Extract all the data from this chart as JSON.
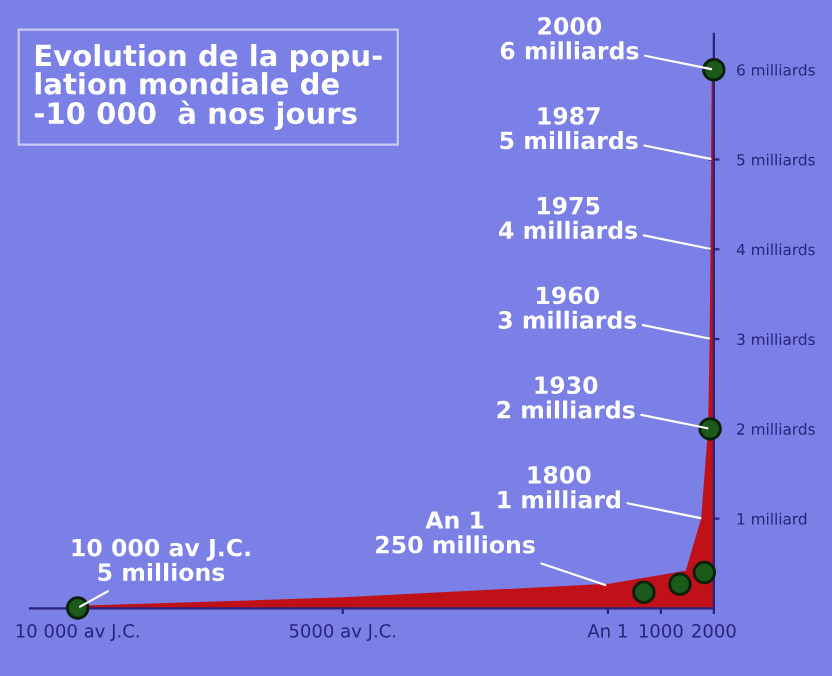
{
  "chart_data": {
    "type": "area",
    "title": "Evolution de la popu-\nlation mondiale de\n-10 000  à nos jours",
    "series": [
      {
        "color": "#c01018",
        "x": [
          -10000,
          -5000,
          1,
          500,
          1000,
          1500,
          1800,
          1930,
          1960,
          1975,
          1987,
          2000
        ],
        "values": [
          0.005,
          0.1,
          0.25,
          0.3,
          0.35,
          0.4,
          1,
          2,
          3,
          4,
          5,
          6
        ]
      },
      {
        "type": "scatter",
        "marker": "circle",
        "color": "#1c5a1c",
        "x": [
          -10000,
          680,
          1360,
          1820,
          1930,
          2000
        ],
        "values": [
          0.005,
          0.18,
          0.27,
          0.4,
          2,
          6
        ]
      }
    ],
    "annotations": [
      {
        "text": "10 000 av J.C.\n5 millions",
        "x": -10000,
        "y": 0.005
      },
      {
        "text": "An 1\n250 millions",
        "x": 1,
        "y": 0.25
      },
      {
        "text": "1800\n1 milliard",
        "x": 1800,
        "y": 1
      },
      {
        "text": "1930\n2 milliards",
        "x": 1930,
        "y": 2
      },
      {
        "text": "1960\n3 milliards",
        "x": 1960,
        "y": 3
      },
      {
        "text": "1975\n4 milliards",
        "x": 1975,
        "y": 4
      },
      {
        "text": "1987\n5 milliards",
        "x": 1987,
        "y": 5
      },
      {
        "text": "2000\n6 milliards",
        "x": 2000,
        "y": 6
      }
    ],
    "xlim": [
      -10900,
      2000
    ],
    "xticks": [
      {
        "value": -10000,
        "label": "10 000 av J.C."
      },
      {
        "value": -5000,
        "label": "5000 av J.C."
      },
      {
        "value": 1,
        "label": "An 1"
      },
      1000,
      2000
    ],
    "ylim": [
      0,
      6.4
    ],
    "yticks": [
      {
        "value": 1,
        "label": "1 milliard"
      },
      {
        "value": 2,
        "label": "2 milliards"
      },
      {
        "value": 3,
        "label": "3 milliards"
      },
      {
        "value": 4,
        "label": "4 milliards"
      },
      {
        "value": 5,
        "label": "5 milliards"
      },
      {
        "value": 6,
        "label": "6 milliards"
      }
    ],
    "grid": false,
    "legend": false
  }
}
